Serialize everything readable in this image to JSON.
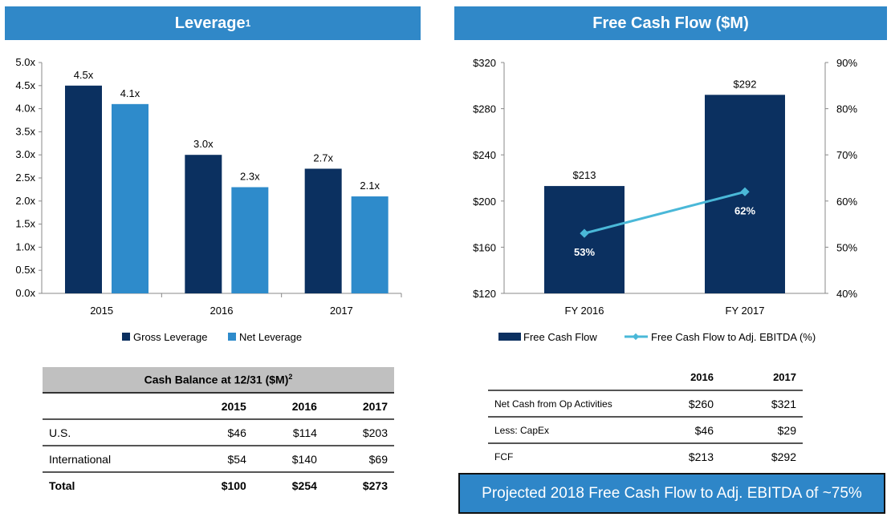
{
  "left_header": {
    "title": "Leverage",
    "footnote": "1"
  },
  "right_header": {
    "title": "Free Cash Flow ($M)"
  },
  "chart_data": [
    {
      "type": "bar",
      "categories": [
        "2015",
        "2016",
        "2017"
      ],
      "series": [
        {
          "name": "Gross Leverage",
          "values": [
            4.5,
            3.0,
            2.7
          ],
          "labels": [
            "4.5x",
            "3.0x",
            "2.7x"
          ],
          "color": "#0b3060"
        },
        {
          "name": "Net Leverage",
          "values": [
            4.1,
            2.3,
            2.1
          ],
          "labels": [
            "4.1x",
            "2.3x",
            "2.1x"
          ],
          "color": "#2e8bcb"
        }
      ],
      "ylim": [
        0,
        5
      ],
      "yticks": [
        "0.0x",
        "0.5x",
        "1.0x",
        "1.5x",
        "2.0x",
        "2.5x",
        "3.0x",
        "3.5x",
        "4.0x",
        "4.5x",
        "5.0x"
      ],
      "legend": "bottom",
      "grid": false
    },
    {
      "type": "bar+line",
      "categories": [
        "FY 2016",
        "FY 2017"
      ],
      "series": [
        {
          "name": "Free Cash Flow",
          "values": [
            213,
            292
          ],
          "labels": [
            "$213",
            "$292"
          ],
          "color": "#0b3060",
          "axis": "left"
        },
        {
          "name": "Free Cash Flow to Adj. EBITDA (%)",
          "values": [
            53,
            62
          ],
          "labels": [
            "53%",
            "62%"
          ],
          "color": "#4ab8d8",
          "axis": "right"
        }
      ],
      "ylim": [
        120,
        320
      ],
      "yticks": [
        "$120",
        "$160",
        "$200",
        "$240",
        "$280",
        "$320"
      ],
      "y2lim": [
        40,
        90
      ],
      "y2ticks": [
        "40%",
        "50%",
        "60%",
        "70%",
        "80%",
        "90%"
      ],
      "legend": "bottom",
      "grid": false
    }
  ],
  "cash_table": {
    "title": "Cash Balance at 12/31  ($M)",
    "footnote": "2",
    "columns": [
      "2015",
      "2016",
      "2017"
    ],
    "rows": [
      {
        "label": "U.S.",
        "values": [
          "$46",
          "$114",
          "$203"
        ]
      },
      {
        "label": "International",
        "values": [
          "$54",
          "$140",
          "$69"
        ]
      },
      {
        "label": "Total",
        "values": [
          "$100",
          "$254",
          "$273"
        ]
      }
    ]
  },
  "fcf_table": {
    "columns": [
      "2016",
      "2017"
    ],
    "rows": [
      {
        "label": "Net Cash from Op Activities",
        "values": [
          "$260",
          "$321"
        ]
      },
      {
        "label": "Less: CapEx",
        "values": [
          "$46",
          "$29"
        ]
      },
      {
        "label": "FCF",
        "values": [
          "$213",
          "$292"
        ]
      }
    ]
  },
  "banner": {
    "text": "Projected 2018 Free Cash Flow to Adj. EBITDA of ~75%"
  }
}
